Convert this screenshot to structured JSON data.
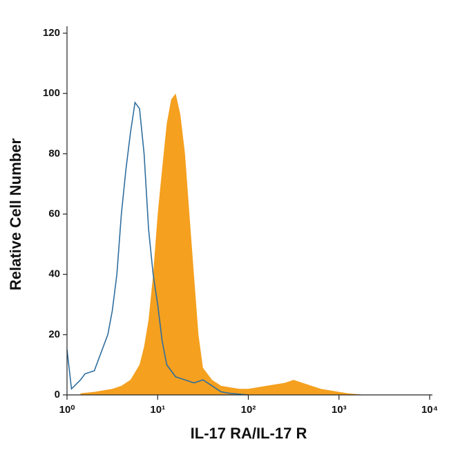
{
  "chart_data": {
    "type": "histogram-overlay",
    "xlabel": "IL-17 RA/IL-17 R",
    "ylabel": "Relative Cell Number",
    "xscale": "log",
    "xlim": [
      1,
      10000
    ],
    "xticks": [
      {
        "value": 1,
        "label": "10⁰"
      },
      {
        "value": 10,
        "label": "10¹"
      },
      {
        "value": 100,
        "label": "10²"
      },
      {
        "value": 1000,
        "label": "10³"
      },
      {
        "value": 10000,
        "label": "10⁴"
      }
    ],
    "ylim": [
      0,
      120
    ],
    "yticks": [
      0,
      20,
      40,
      60,
      80,
      100,
      120
    ],
    "series": [
      {
        "color": "#f5a01f",
        "fill": true,
        "x": [
          1.41,
          2.0,
          3.16,
          3.98,
          5.01,
          6.31,
          7.08,
          7.94,
          8.91,
          10,
          11.2,
          12.6,
          14.1,
          15.8,
          17.8,
          20,
          22.4,
          25.1,
          28.2,
          31.6,
          39.8,
          50.1,
          79.4,
          100,
          158,
          251,
          316,
          398,
          631,
          1000,
          1260,
          2000
        ],
        "values": [
          0.5,
          1,
          2,
          3,
          5,
          10,
          16,
          25,
          40,
          60,
          75,
          90,
          98,
          100,
          93,
          80,
          60,
          40,
          20,
          9,
          5,
          3,
          2,
          2,
          3,
          4,
          5,
          4,
          2,
          1,
          0.5,
          0
        ]
      },
      {
        "color": "#2e6e9e",
        "fill": false,
        "x": [
          1,
          1.12,
          1.41,
          1.58,
          2.0,
          2.24,
          2.82,
          3.16,
          3.55,
          3.98,
          4.47,
          5.01,
          5.62,
          6.31,
          7.08,
          7.94,
          8.91,
          10,
          11.2,
          12.6,
          15.8,
          20,
          25.1,
          31.6,
          39.8,
          50.1,
          63.1,
          100
        ],
        "values": [
          15,
          2,
          5,
          7,
          8,
          12,
          20,
          28,
          40,
          60,
          75,
          87,
          97,
          95,
          80,
          55,
          40,
          30,
          18,
          10,
          6,
          5,
          4,
          5,
          3,
          1,
          0.5,
          0
        ]
      }
    ]
  }
}
